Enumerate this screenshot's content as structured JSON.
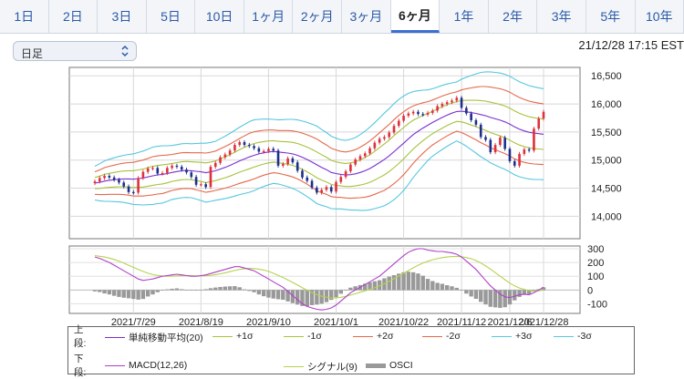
{
  "tabs": [
    {
      "label": "1日",
      "active": false
    },
    {
      "label": "2日",
      "active": false
    },
    {
      "label": "3日",
      "active": false
    },
    {
      "label": "5日",
      "active": false
    },
    {
      "label": "10日",
      "active": false
    },
    {
      "label": "1ヶ月",
      "active": false
    },
    {
      "label": "2ヶ月",
      "active": false
    },
    {
      "label": "3ヶ月",
      "active": false
    },
    {
      "label": "6ヶ月",
      "active": true
    },
    {
      "label": "1年",
      "active": false
    },
    {
      "label": "2年",
      "active": false
    },
    {
      "label": "3年",
      "active": false
    },
    {
      "label": "5年",
      "active": false
    },
    {
      "label": "10年",
      "active": false
    }
  ],
  "select": {
    "value": "日足"
  },
  "timestamp": "21/12/28 17:15 EST",
  "colors": {
    "sma": "#7a2fd0",
    "sd1": "#a6c23a",
    "sd2": "#e4694a",
    "sd3": "#56c7de",
    "macd": "#b040c8",
    "signal": "#b5d34e",
    "osci": "#999999",
    "up": "#e0303c",
    "down": "#1d2f8c"
  },
  "chart_data": [
    {
      "type": "candlestick",
      "title": "",
      "x_ticks": [
        "2021/7/29",
        "2021/8/19",
        "2021/9/10",
        "2021/10/1",
        "2021/10/22",
        "2021/11/12",
        "2021/12/6",
        "2021/12/28"
      ],
      "y_ticks": [
        14000,
        14500,
        15000,
        15500,
        16000,
        16500
      ],
      "ylim": [
        13600,
        16650
      ],
      "grid": true,
      "series_labels": [
        "単純移動平均(20)",
        "+1σ",
        "-1σ",
        "+2σ",
        "-2σ",
        "+3σ",
        "-3σ"
      ],
      "close": [
        14620,
        14680,
        14720,
        14690,
        14650,
        14600,
        14530,
        14430,
        14420,
        14680,
        14790,
        14850,
        14860,
        14760,
        14770,
        14860,
        14900,
        14880,
        14830,
        14780,
        14700,
        14560,
        14570,
        14520,
        14880,
        14950,
        15050,
        15100,
        15170,
        15270,
        15320,
        15270,
        15250,
        15210,
        15150,
        15160,
        15200,
        15170,
        14900,
        14930,
        15030,
        14960,
        14810,
        14690,
        14630,
        14510,
        14420,
        14470,
        14520,
        14440,
        14610,
        14700,
        14800,
        14920,
        15010,
        15070,
        15120,
        15210,
        15310,
        15380,
        15410,
        15490,
        15610,
        15700,
        15790,
        15830,
        15860,
        15820,
        15810,
        15840,
        15880,
        15960,
        16000,
        16030,
        16060,
        16110,
        15930,
        15830,
        15710,
        15630,
        15410,
        15360,
        15140,
        15270,
        15400,
        15200,
        14980,
        14900,
        15110,
        15190,
        15170,
        15560,
        15740,
        15860
      ],
      "sma": [
        14590,
        14605,
        14625,
        14640,
        14650,
        14660,
        14665,
        14665,
        14660,
        14670,
        14680,
        14700,
        14720,
        14735,
        14745,
        14760,
        14780,
        14795,
        14810,
        14815,
        14810,
        14800,
        14790,
        14775,
        14790,
        14810,
        14840,
        14870,
        14905,
        14945,
        14985,
        15020,
        15055,
        15085,
        15110,
        15130,
        15145,
        15155,
        15145,
        15135,
        15125,
        15110,
        15085,
        15050,
        15010,
        14965,
        14915,
        14870,
        14830,
        14780,
        14760,
        14745,
        14735,
        14740,
        14755,
        14780,
        14810,
        14850,
        14900,
        14955,
        15010,
        15075,
        15150,
        15225,
        15300,
        15380,
        15455,
        15515,
        15570,
        15620,
        15670,
        15715,
        15760,
        15800,
        15835,
        15865,
        15870,
        15860,
        15845,
        15830,
        15810,
        15790,
        15760,
        15735,
        15710,
        15680,
        15640,
        15590,
        15550,
        15520,
        15495,
        15480,
        15470,
        15460
      ],
      "sigma": [
        100,
        110,
        120,
        125,
        130,
        135,
        140,
        145,
        150,
        155,
        160,
        165,
        170,
        170,
        170,
        165,
        160,
        160,
        160,
        160,
        160,
        165,
        170,
        175,
        175,
        175,
        180,
        185,
        190,
        195,
        200,
        205,
        210,
        210,
        205,
        200,
        195,
        190,
        190,
        195,
        200,
        205,
        210,
        215,
        220,
        225,
        230,
        225,
        220,
        215,
        210,
        205,
        205,
        210,
        215,
        225,
        235,
        245,
        255,
        265,
        275,
        280,
        285,
        285,
        280,
        270,
        255,
        240,
        225,
        210,
        200,
        195,
        190,
        185,
        180,
        175,
        190,
        205,
        220,
        235,
        250,
        260,
        270,
        275,
        280,
        282,
        284,
        284,
        282,
        280,
        277,
        275,
        272,
        270
      ]
    },
    {
      "type": "macd",
      "x_ticks": [
        "2021/7/29",
        "2021/8/19",
        "2021/9/10",
        "2021/10/1",
        "2021/10/22",
        "2021/11/12",
        "2021/12/6",
        "2021/12/28"
      ],
      "y_ticks": [
        300,
        200,
        100,
        0,
        -100
      ],
      "ylim": [
        -170,
        320
      ],
      "series_labels": [
        "MACD(12,26)",
        "シグナル(9)",
        "OSCI"
      ],
      "macd": [
        240,
        230,
        215,
        200,
        180,
        160,
        140,
        120,
        100,
        80,
        70,
        75,
        80,
        90,
        100,
        105,
        110,
        115,
        110,
        105,
        100,
        100,
        105,
        110,
        120,
        130,
        140,
        150,
        160,
        170,
        170,
        160,
        150,
        140,
        120,
        100,
        80,
        60,
        40,
        20,
        -10,
        -40,
        -70,
        -100,
        -120,
        -130,
        -140,
        -145,
        -140,
        -130,
        -110,
        -80,
        -50,
        -20,
        0,
        20,
        40,
        60,
        80,
        100,
        130,
        160,
        190,
        220,
        250,
        275,
        290,
        300,
        300,
        290,
        285,
        280,
        280,
        275,
        270,
        260,
        240,
        210,
        180,
        150,
        110,
        70,
        30,
        0,
        -30,
        -50,
        -55,
        -45,
        -35,
        -30,
        -35,
        -20,
        0,
        20
      ],
      "signal": [
        250,
        245,
        240,
        232,
        222,
        210,
        196,
        180,
        165,
        150,
        135,
        122,
        112,
        106,
        102,
        100,
        101,
        103,
        104,
        104,
        104,
        103,
        103,
        104,
        107,
        112,
        118,
        125,
        133,
        142,
        150,
        155,
        157,
        156,
        152,
        145,
        135,
        122,
        107,
        91,
        73,
        55,
        36,
        16,
        -2,
        -20,
        -34,
        -45,
        -52,
        -58,
        -58,
        -53,
        -46,
        -37,
        -27,
        -16,
        -6,
        4,
        16,
        29,
        45,
        63,
        82,
        101,
        121,
        142,
        161,
        180,
        196,
        209,
        220,
        228,
        235,
        240,
        243,
        244,
        242,
        236,
        227,
        214,
        196,
        175,
        152,
        126,
        100,
        75,
        50,
        30,
        15,
        5,
        -5,
        -8,
        -6,
        0
      ]
    }
  ],
  "legend": {
    "upper_label": "上段:",
    "lower_label": "下段:",
    "upper_items": [
      "単純移動平均(20)",
      "+1σ",
      "-1σ",
      "+2σ",
      "-2σ",
      "+3σ",
      "-3σ"
    ],
    "lower_items": [
      "MACD(12,26)",
      "シグナル(9)",
      "OSCI"
    ]
  }
}
